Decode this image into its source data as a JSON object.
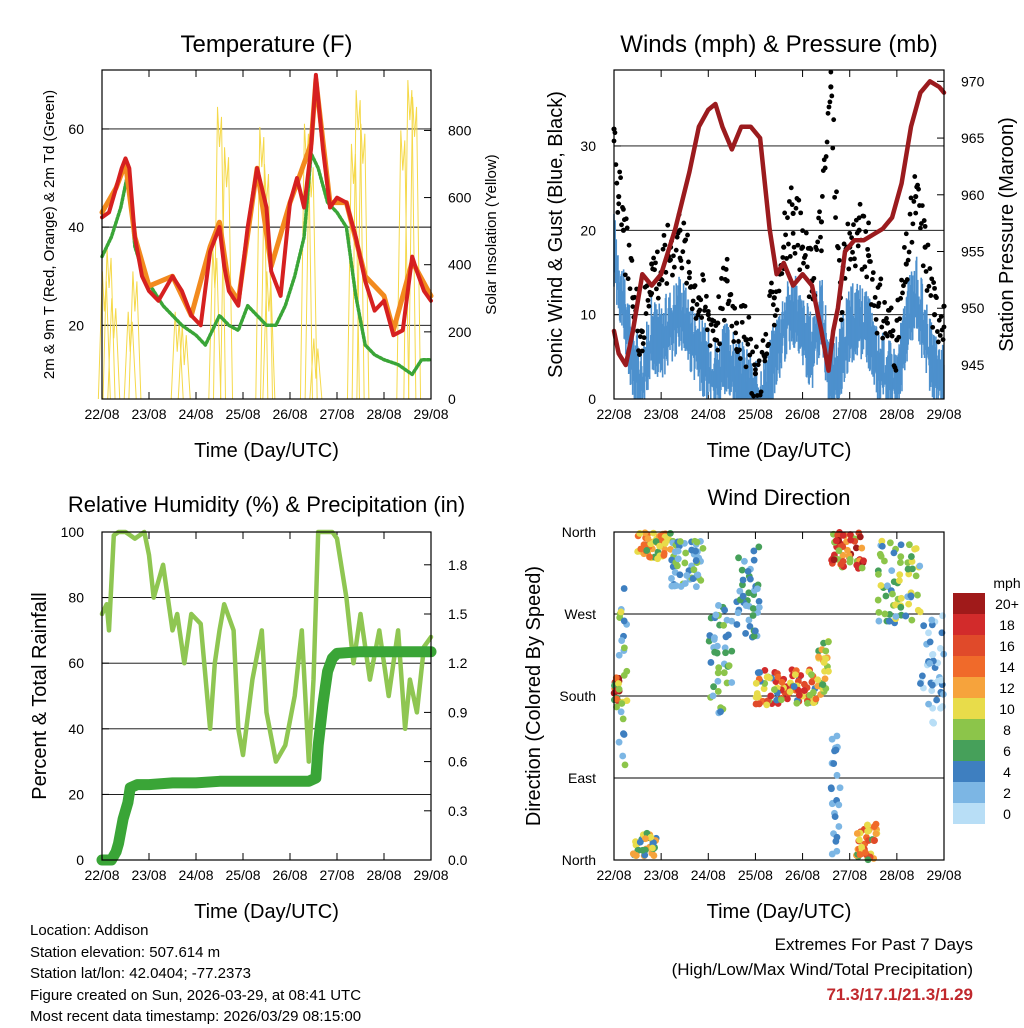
{
  "chart_data": [
    {
      "type": "line",
      "title": "Temperature (F)",
      "xlabel": "Time (Day/UTC)",
      "ylabel": "2m & 9m T (Red, Orange) & 2m Td (Green)",
      "y2label": "Solar Insolation (Yellow)",
      "xlim": [
        22,
        29
      ],
      "x_ticks": [
        "22/08",
        "23/08",
        "24/08",
        "25/08",
        "26/08",
        "27/08",
        "28/08",
        "29/08"
      ],
      "ylim": [
        5,
        72
      ],
      "y_ticks": [
        20,
        40,
        60
      ],
      "y2lim": [
        0,
        980
      ],
      "y2_ticks": [
        0,
        200,
        400,
        600,
        800
      ],
      "grid_y": [
        20,
        40,
        60
      ],
      "series": [
        {
          "name": "2m T",
          "color": "#d62020",
          "axis": "left",
          "x": [
            22.0,
            22.15,
            22.3,
            22.42,
            22.5,
            22.58,
            22.7,
            22.85,
            23.0,
            23.2,
            23.5,
            23.7,
            23.9,
            24.1,
            24.3,
            24.5,
            24.6,
            24.7,
            24.9,
            25.1,
            25.3,
            25.5,
            25.6,
            25.8,
            26.0,
            26.15,
            26.3,
            26.45,
            26.55,
            26.7,
            26.85,
            27.0,
            27.2,
            27.4,
            27.6,
            27.8,
            28.0,
            28.2,
            28.4,
            28.6,
            28.7,
            28.85,
            29.0
          ],
          "y": [
            42,
            43,
            48,
            52,
            54,
            52,
            38,
            30,
            27,
            25,
            30,
            27,
            22,
            20,
            35,
            40,
            32,
            27,
            24,
            40,
            52,
            44,
            31,
            26,
            45,
            50,
            44,
            56,
            71,
            56,
            44,
            46,
            45,
            38,
            29,
            23,
            25,
            18,
            19,
            34,
            31,
            27,
            25
          ]
        },
        {
          "name": "9m T",
          "color": "#f28a1e",
          "axis": "left",
          "x": [
            22.0,
            22.3,
            22.5,
            22.7,
            23.0,
            23.5,
            23.9,
            24.3,
            24.5,
            24.7,
            24.9,
            25.3,
            25.6,
            26.0,
            26.45,
            26.55,
            26.85,
            27.2,
            27.6,
            28.0,
            28.2,
            28.6,
            29.0
          ],
          "y": [
            43,
            48,
            53,
            38,
            28,
            30,
            22,
            36,
            41,
            28,
            25,
            52,
            32,
            45,
            57,
            70,
            45,
            45,
            30,
            26,
            19,
            33,
            26
          ]
        },
        {
          "name": "2m Td",
          "color": "#3aa537",
          "axis": "left",
          "x": [
            22.0,
            22.2,
            22.4,
            22.55,
            22.7,
            22.9,
            23.1,
            23.3,
            23.5,
            23.7,
            24.0,
            24.2,
            24.5,
            24.7,
            24.9,
            25.1,
            25.3,
            25.5,
            25.7,
            25.9,
            26.1,
            26.3,
            26.45,
            26.6,
            26.8,
            27.0,
            27.2,
            27.4,
            27.6,
            27.8,
            28.0,
            28.3,
            28.6,
            28.8,
            29.0
          ],
          "y": [
            34,
            38,
            44,
            51,
            36,
            30,
            27,
            24,
            22,
            20,
            18,
            16,
            22,
            20,
            19,
            24,
            22,
            20,
            20,
            24,
            30,
            38,
            55,
            52,
            45,
            43,
            40,
            26,
            16,
            14,
            13,
            12,
            10,
            13,
            13
          ]
        },
        {
          "name": "Solar Insolation",
          "color": "#f5d94a",
          "axis": "right",
          "kind": "daily_pulses",
          "x": [
            22.05,
            22.15,
            22.25,
            22.6,
            22.7,
            23.6,
            23.75,
            24.4,
            24.5,
            24.65,
            25.4,
            25.5,
            25.55,
            26.35,
            26.45,
            26.55,
            27.35,
            27.45,
            27.55,
            28.4,
            28.55,
            28.65
          ],
          "y": [
            380,
            450,
            300,
            260,
            380,
            260,
            220,
            450,
            870,
            750,
            810,
            700,
            380,
            820,
            720,
            180,
            760,
            920,
            820,
            800,
            950,
            900
          ]
        }
      ]
    },
    {
      "type": "scatter",
      "title": "Winds (mph) & Pressure (mb)",
      "xlabel": "Time (Day/UTC)",
      "ylabel": "Sonic Wind & Gust (Blue, Black)",
      "y2label": "Station Pressure (Maroon)",
      "xlim": [
        22,
        29
      ],
      "x_ticks": [
        "22/08",
        "23/08",
        "24/08",
        "25/08",
        "26/08",
        "27/08",
        "28/08",
        "29/08"
      ],
      "ylim": [
        0,
        39
      ],
      "y_ticks": [
        0,
        10,
        20,
        30
      ],
      "y2lim": [
        942,
        971
      ],
      "y2_ticks": [
        945,
        950,
        955,
        960,
        965,
        970
      ],
      "grid_y": [
        10,
        20,
        30
      ],
      "series": [
        {
          "name": "Sonic Wind",
          "color": "#4d90cd",
          "axis": "left",
          "x": [
            22.0,
            22.2,
            22.4,
            22.6,
            22.8,
            23.0,
            23.2,
            23.4,
            23.6,
            23.8,
            24.0,
            24.2,
            24.4,
            24.6,
            24.8,
            25.0,
            25.2,
            25.4,
            25.6,
            25.8,
            26.0,
            26.2,
            26.4,
            26.6,
            26.8,
            27.0,
            27.2,
            27.4,
            27.6,
            27.8,
            28.0,
            28.2,
            28.4,
            28.6,
            28.8,
            29.0
          ],
          "y": [
            19,
            12,
            6,
            3,
            9,
            8,
            10,
            12,
            9,
            7,
            5,
            4,
            6,
            4,
            3,
            1,
            2,
            6,
            10,
            12,
            9,
            7,
            12,
            3,
            6,
            10,
            11,
            9,
            5,
            4,
            3,
            10,
            14,
            9,
            4,
            4
          ]
        },
        {
          "name": "Gust",
          "color": "#000000",
          "axis": "left",
          "x": [
            22.0,
            22.1,
            22.2,
            22.4,
            22.6,
            22.8,
            23.0,
            23.2,
            23.4,
            23.6,
            23.8,
            24.0,
            24.2,
            24.4,
            24.6,
            24.8,
            25.0,
            25.2,
            25.4,
            25.6,
            25.8,
            26.0,
            26.2,
            26.4,
            26.6,
            26.8,
            27.0,
            27.2,
            27.4,
            27.6,
            27.8,
            28.0,
            28.2,
            28.4,
            28.6,
            28.8,
            29.0
          ],
          "y": [
            32,
            24,
            20,
            12,
            8,
            16,
            15,
            18,
            20,
            15,
            12,
            10,
            9,
            14,
            9,
            7,
            3,
            5,
            12,
            18,
            22,
            18,
            14,
            21,
            37,
            12,
            18,
            20,
            17,
            11,
            9,
            7,
            16,
            24,
            18,
            10,
            11
          ]
        },
        {
          "name": "Station Pressure",
          "color": "#9b1b1e",
          "axis": "right",
          "x": [
            22.0,
            22.1,
            22.25,
            22.4,
            22.6,
            22.8,
            23.0,
            23.3,
            23.6,
            23.8,
            24.0,
            24.15,
            24.3,
            24.5,
            24.7,
            24.9,
            25.1,
            25.3,
            25.45,
            25.6,
            25.8,
            26.0,
            26.2,
            26.4,
            26.55,
            26.65,
            26.75,
            26.9,
            27.1,
            27.3,
            27.5,
            27.7,
            27.9,
            28.1,
            28.3,
            28.5,
            28.7,
            28.9,
            29.0
          ],
          "y": [
            948,
            946,
            945,
            948,
            953,
            952,
            953,
            957,
            962,
            966,
            967.5,
            968,
            966,
            964,
            966,
            966,
            965,
            957,
            953,
            954,
            952,
            953,
            952,
            948,
            944.5,
            948,
            950,
            955,
            956,
            956,
            956.5,
            957,
            958,
            961,
            966,
            969,
            970,
            969.5,
            969
          ]
        }
      ]
    },
    {
      "type": "line",
      "title": "Relative Humidity (%) & Precipitation (in)",
      "xlabel": "Time (Day/UTC)",
      "ylabel": "Percent & Total Rainfall",
      "xlim": [
        22,
        29
      ],
      "x_ticks": [
        "22/08",
        "23/08",
        "24/08",
        "25/08",
        "26/08",
        "27/08",
        "28/08",
        "29/08"
      ],
      "ylim": [
        0,
        100
      ],
      "y_ticks": [
        0,
        20,
        40,
        60,
        80,
        100
      ],
      "y2lim": [
        0,
        2.0
      ],
      "y2_ticks": [
        "0.0",
        "0.3",
        "0.6",
        "0.9",
        "1.2",
        "1.5",
        "1.8"
      ],
      "grid_y": [
        20,
        40,
        60,
        80
      ],
      "series": [
        {
          "name": "Relative Humidity",
          "color": "#8fc652",
          "axis": "left",
          "x": [
            22.0,
            22.1,
            22.15,
            22.25,
            22.35,
            22.5,
            22.7,
            22.9,
            23.0,
            23.1,
            23.3,
            23.5,
            23.6,
            23.75,
            23.9,
            24.1,
            24.3,
            24.4,
            24.5,
            24.6,
            24.8,
            24.9,
            25.0,
            25.2,
            25.4,
            25.5,
            25.7,
            25.9,
            26.1,
            26.25,
            26.4,
            26.5,
            26.6,
            26.7,
            26.9,
            27.0,
            27.2,
            27.35,
            27.5,
            27.7,
            27.9,
            28.1,
            28.3,
            28.45,
            28.55,
            28.7,
            28.85,
            29.0
          ],
          "y": [
            75,
            78,
            70,
            99,
            100,
            100,
            98,
            100,
            93,
            80,
            90,
            70,
            75,
            60,
            75,
            72,
            40,
            60,
            70,
            78,
            70,
            40,
            32,
            55,
            70,
            45,
            30,
            35,
            50,
            70,
            30,
            55,
            100,
            100,
            100,
            98,
            80,
            60,
            75,
            55,
            70,
            50,
            70,
            40,
            55,
            45,
            65,
            68
          ]
        },
        {
          "name": "Total Precipitation",
          "color": "#3aa537",
          "axis": "right",
          "x": [
            22.0,
            22.2,
            22.3,
            22.35,
            22.45,
            22.55,
            22.6,
            22.75,
            23.0,
            23.5,
            24.0,
            24.5,
            25.0,
            25.5,
            26.0,
            26.4,
            26.55,
            26.6,
            26.7,
            26.8,
            26.9,
            27.0,
            27.5,
            28.0,
            28.5,
            29.0
          ],
          "y": [
            0.0,
            0.0,
            0.05,
            0.1,
            0.25,
            0.35,
            0.44,
            0.46,
            0.46,
            0.47,
            0.47,
            0.48,
            0.48,
            0.48,
            0.48,
            0.48,
            0.5,
            0.7,
            0.95,
            1.15,
            1.23,
            1.26,
            1.27,
            1.27,
            1.27,
            1.27
          ]
        }
      ]
    },
    {
      "type": "scatter",
      "title": "Wind Direction",
      "xlabel": "Time (Day/UTC)",
      "ylabel": "Direction (Colored By Speed)",
      "xlim": [
        22,
        29
      ],
      "x_ticks": [
        "22/08",
        "23/08",
        "24/08",
        "25/08",
        "26/08",
        "27/08",
        "28/08",
        "29/08"
      ],
      "ylim": [
        0,
        360
      ],
      "y_ticks": [
        "North",
        "East",
        "South",
        "West",
        "North"
      ],
      "y_tick_values": [
        0,
        90,
        180,
        270,
        360
      ],
      "grid_y": [
        90,
        180,
        270
      ],
      "colorbar": {
        "unit": "mph",
        "labels": [
          "20+",
          "18",
          "16",
          "14",
          "12",
          "10",
          "8",
          "6",
          "4",
          "2",
          "0"
        ],
        "colors": [
          "#a01a1a",
          "#d22b2b",
          "#e04a2a",
          "#f06a2a",
          "#f6a33c",
          "#e8dc4a",
          "#8cc54a",
          "#46a05a",
          "#3e7fc0",
          "#7cb6e4",
          "#b8def6"
        ]
      },
      "clusters": [
        {
          "day_start": 22.0,
          "day_end": 22.12,
          "dir_min": 170,
          "dir_max": 200,
          "speeds": [
            20,
            18,
            14,
            6
          ]
        },
        {
          "day_start": 22.05,
          "day_end": 22.3,
          "dir_min": 90,
          "dir_max": 300,
          "speeds": [
            2,
            4,
            8,
            10
          ]
        },
        {
          "day_start": 22.4,
          "day_end": 22.9,
          "dir_min": 0,
          "dir_max": 30,
          "speeds": [
            4,
            6,
            10,
            12
          ]
        },
        {
          "day_start": 22.5,
          "day_end": 23.2,
          "dir_min": 330,
          "dir_max": 360,
          "speeds": [
            6,
            10,
            12,
            14
          ]
        },
        {
          "day_start": 23.2,
          "day_end": 23.9,
          "dir_min": 300,
          "dir_max": 350,
          "speeds": [
            2,
            4,
            8
          ]
        },
        {
          "day_start": 24.0,
          "day_end": 24.5,
          "dir_min": 160,
          "dir_max": 280,
          "speeds": [
            2,
            4,
            6,
            8
          ]
        },
        {
          "day_start": 24.6,
          "day_end": 25.1,
          "dir_min": 240,
          "dir_max": 345,
          "speeds": [
            2,
            4,
            6
          ]
        },
        {
          "day_start": 25.0,
          "day_end": 26.3,
          "dir_min": 170,
          "dir_max": 210,
          "speeds": [
            4,
            8,
            10,
            14,
            16,
            18
          ]
        },
        {
          "day_start": 26.3,
          "day_end": 26.55,
          "dir_min": 180,
          "dir_max": 240,
          "speeds": [
            6,
            8,
            10,
            12
          ]
        },
        {
          "day_start": 26.6,
          "day_end": 26.8,
          "dir_min": 0,
          "dir_max": 140,
          "speeds": [
            2,
            4
          ]
        },
        {
          "day_start": 26.6,
          "day_end": 27.3,
          "dir_min": 320,
          "dir_max": 360,
          "speeds": [
            8,
            12,
            16,
            18,
            20
          ]
        },
        {
          "day_start": 27.1,
          "day_end": 27.6,
          "dir_min": 0,
          "dir_max": 40,
          "speeds": [
            6,
            10,
            12,
            14,
            16
          ]
        },
        {
          "day_start": 27.6,
          "day_end": 28.5,
          "dir_min": 260,
          "dir_max": 350,
          "speeds": [
            2,
            4,
            6,
            8,
            10
          ]
        },
        {
          "day_start": 28.5,
          "day_end": 29.0,
          "dir_min": 150,
          "dir_max": 270,
          "speeds": [
            0,
            2,
            4
          ]
        }
      ]
    }
  ],
  "info": {
    "location": "Location: Addison",
    "elevation": "Station elevation: 507.614 m",
    "latlon": "Station lat/lon: 42.0404; -77.2373",
    "created": "Figure created on Sun, 2026-03-29, at 08:41 UTC",
    "timestamp": "Most recent data timestamp: 2026/03/29 08:15:00"
  },
  "extremes": {
    "title": "Extremes For Past 7 Days",
    "subtitle": "(High/Low/Max Wind/Total Precipitation)",
    "values": "71.3/17.1/21.3/1.29"
  }
}
